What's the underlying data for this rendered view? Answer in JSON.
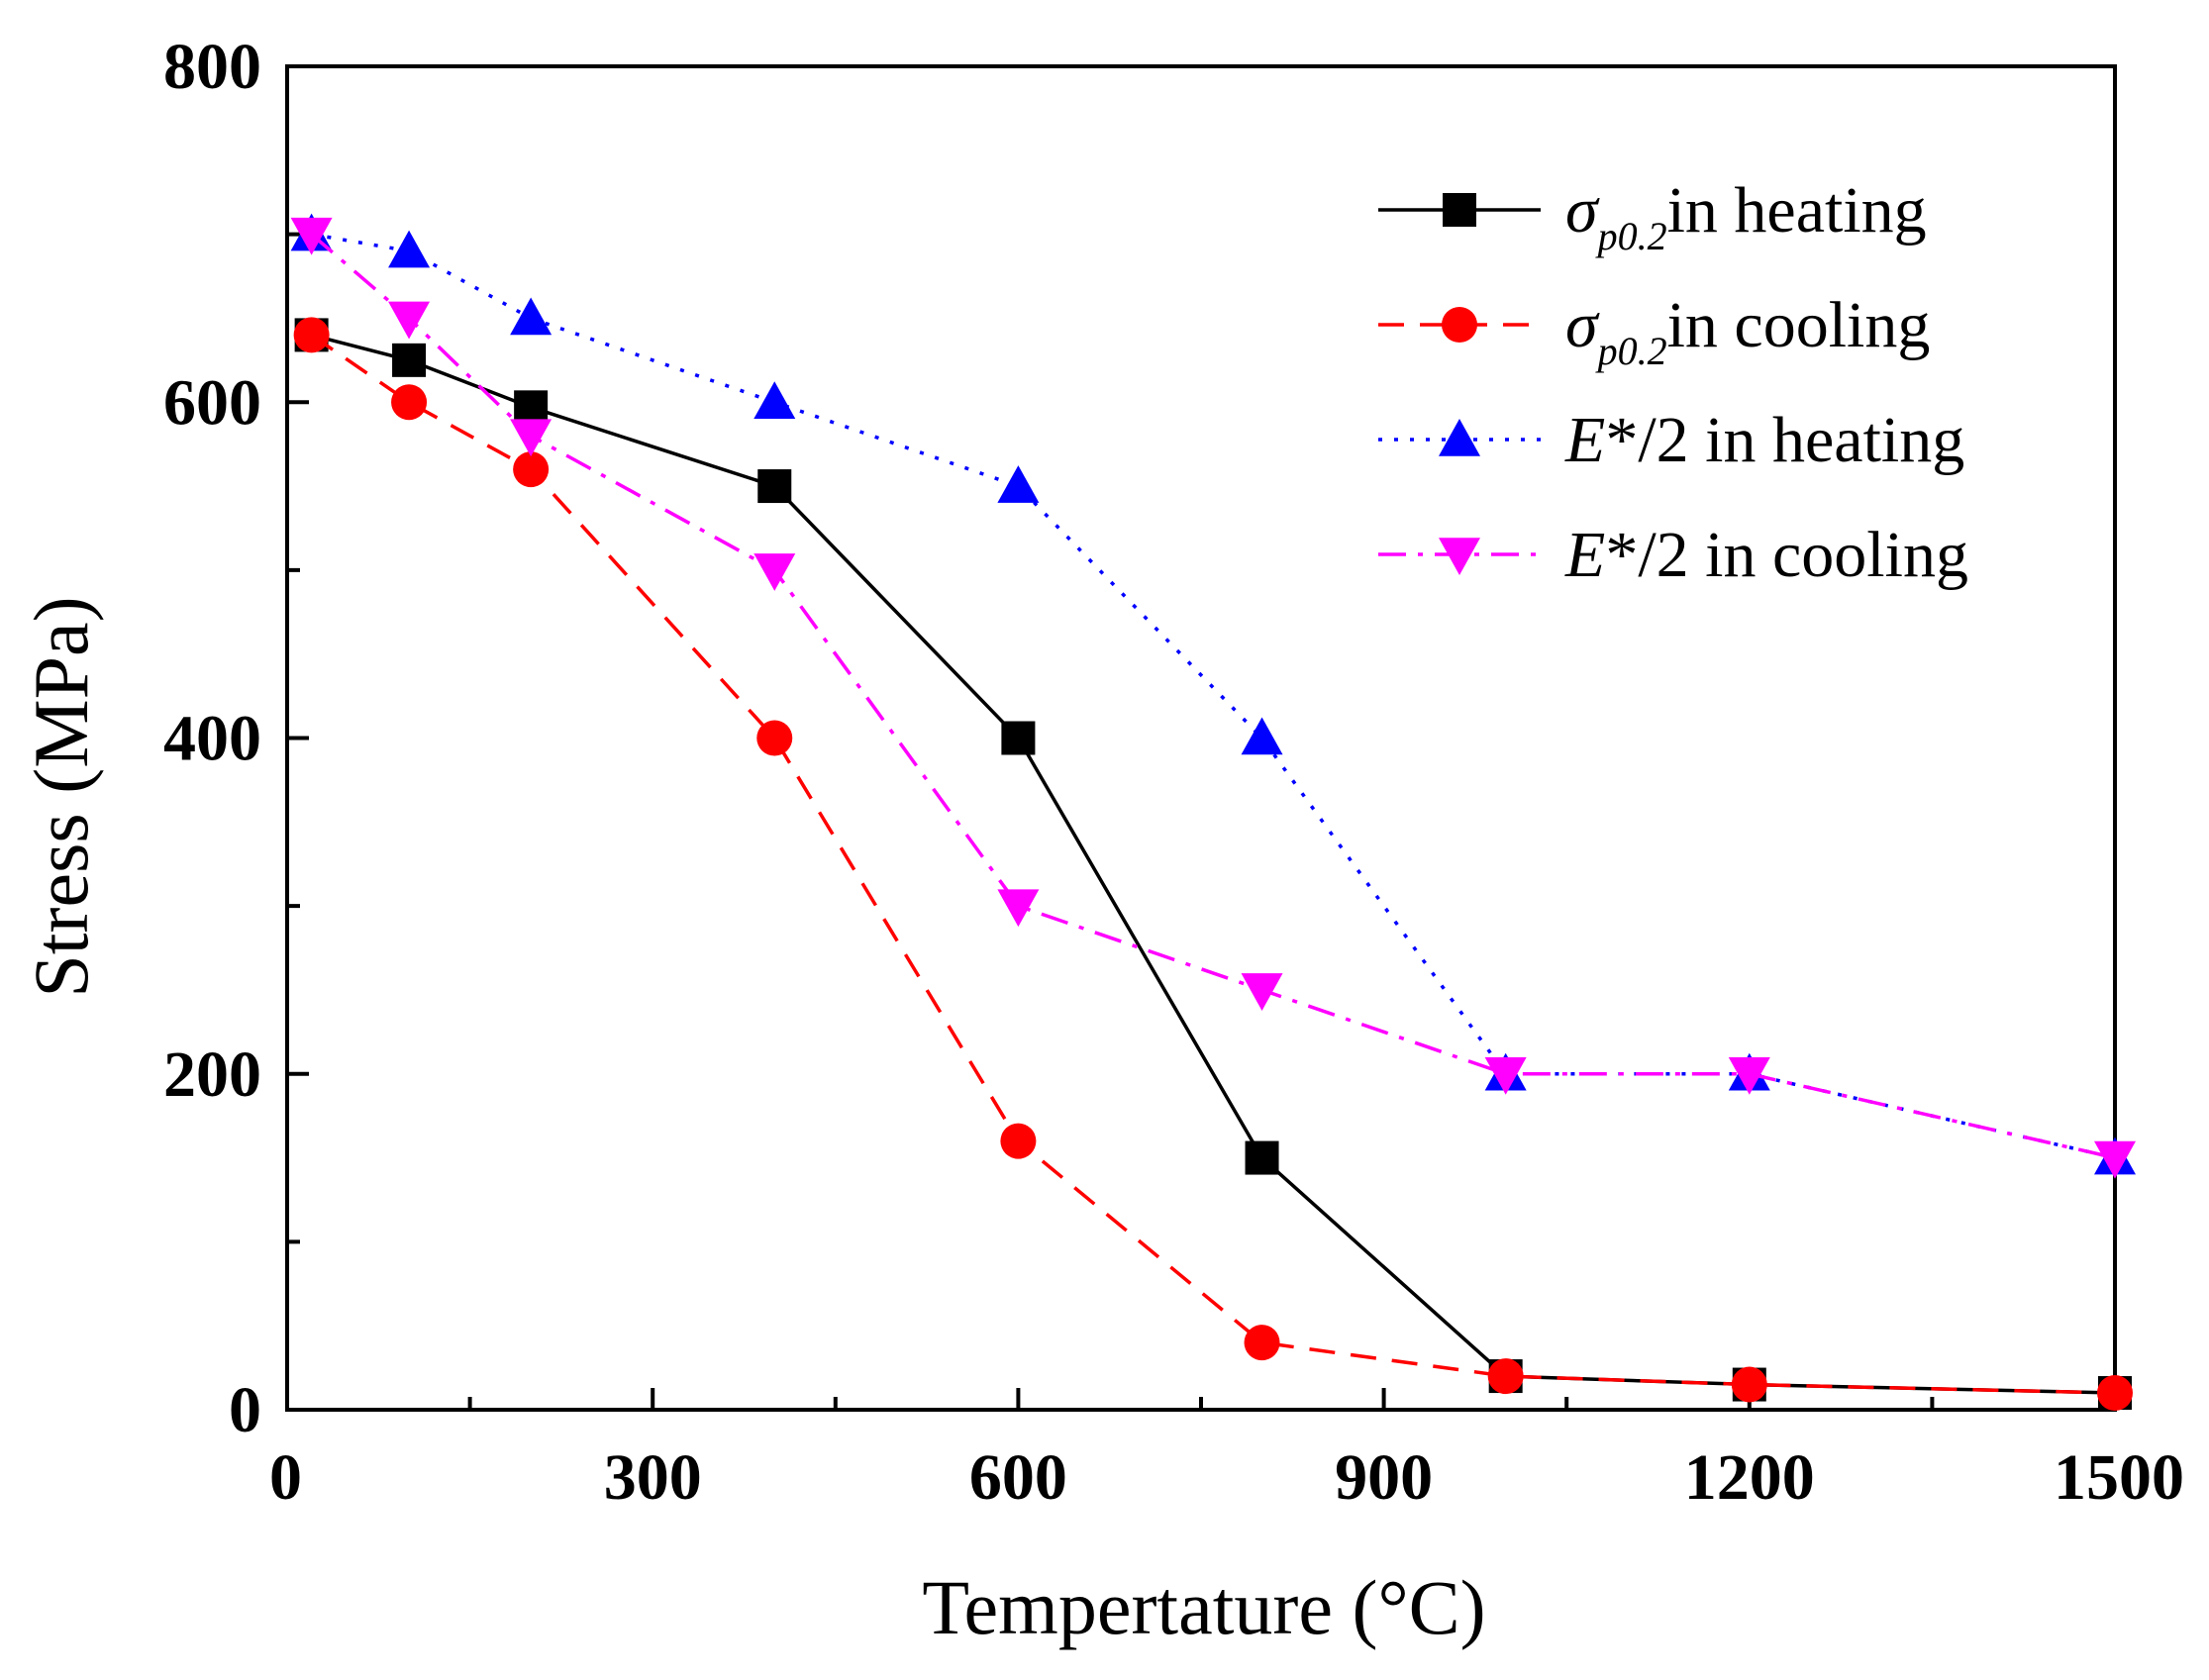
{
  "chart_data": {
    "type": "line",
    "title": "",
    "xlabel": "Tempertature (°C)",
    "ylabel": "Stress (MPa)",
    "xlim": [
      0,
      1500
    ],
    "ylim": [
      0,
      800
    ],
    "xticks": [
      0,
      300,
      600,
      900,
      1200,
      1500
    ],
    "yticks": [
      0,
      200,
      400,
      600,
      800
    ],
    "grid": false,
    "legend_position": "top-right",
    "series": [
      {
        "name": "σp0.2in heating",
        "legend": {
          "symbol": "σ",
          "sub": "p0.2",
          "text": "in heating"
        },
        "color": "#000000",
        "dash": "solid",
        "marker": "square",
        "x": [
          20,
          100,
          200,
          400,
          600,
          800,
          1000,
          1200,
          1500
        ],
        "y": [
          640,
          625,
          597,
          550,
          400,
          150,
          20,
          15,
          10
        ]
      },
      {
        "name": "σp0.2in cooling",
        "legend": {
          "symbol": "σ",
          "sub": "p0.2",
          "text": "in cooling"
        },
        "color": "#ff0000",
        "dash": "dashed",
        "marker": "circle",
        "x": [
          20,
          100,
          200,
          400,
          600,
          800,
          1000,
          1200,
          1500
        ],
        "y": [
          640,
          600,
          560,
          400,
          160,
          40,
          20,
          15,
          10
        ]
      },
      {
        "name": "E*/2 in heating",
        "legend": {
          "symbol": "E",
          "sub": "",
          "text": "*/2 in heating"
        },
        "color": "#0000ff",
        "dash": "dotted",
        "marker": "triangle-up",
        "x": [
          20,
          100,
          200,
          400,
          600,
          800,
          1000,
          1200,
          1500
        ],
        "y": [
          700,
          690,
          650,
          600,
          550,
          400,
          200,
          200,
          150
        ]
      },
      {
        "name": "E*/2 in cooling",
        "legend": {
          "symbol": "E",
          "sub": "",
          "text": "*/2 in cooling"
        },
        "color": "#ff00ff",
        "dash": "dashdot",
        "marker": "triangle-down",
        "x": [
          20,
          100,
          200,
          400,
          600,
          800,
          1000,
          1200,
          1500
        ],
        "y": [
          700,
          650,
          580,
          500,
          300,
          250,
          200,
          200,
          150
        ]
      }
    ]
  }
}
